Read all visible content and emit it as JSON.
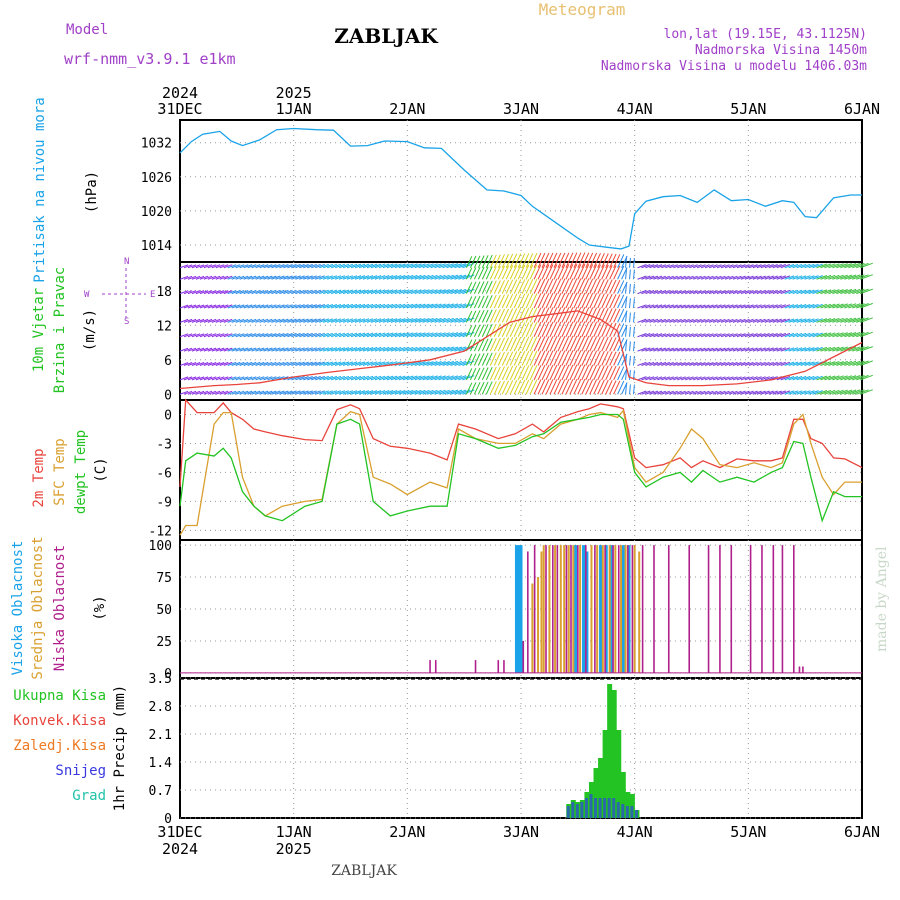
{
  "header": {
    "model_label": "Model",
    "model_name": "wrf-nmm_v3.9.1 e1km",
    "station": "ZABLJAK",
    "product": "Meteogram",
    "lonlat": "lon,lat (19.15E, 43.1125N)",
    "altitude": "Nadmorska Visina 1450m",
    "model_altitude": "Nadmorska Visina u modelu 1406.03m",
    "footer_station": "ZABLJAK",
    "credit": "made by Angel"
  },
  "time_axis": {
    "labels": [
      "31DEC",
      "1JAN",
      "2JAN",
      "3JAN",
      "4JAN",
      "5JAN",
      "6JAN"
    ],
    "year_labels": [
      {
        "at": 0,
        "text": "2024"
      },
      {
        "at": 1,
        "text": "2025"
      }
    ]
  },
  "colors": {
    "pressure": "#1aa3e8",
    "temp2m": "#e8443c",
    "sfc": "#d9a030",
    "dewpt": "#22c322",
    "high": "#1aa3e8",
    "mid": "#d9a030",
    "low": "#b0208c",
    "total": "#22c322",
    "conv": "#e8443c",
    "frz": "#ee7a22",
    "snow": "#3a3ae0",
    "grad": "#22c3a8",
    "purple": "#a040c8"
  },
  "panels": {
    "pressure": {
      "label": "Pritisak na nivou mora",
      "unit": "(hPa)",
      "ticks": [
        1014,
        1020,
        1026,
        1032
      ]
    },
    "wind": {
      "label1": "10m Vjetar",
      "label2": "Brzina i Pravac",
      "unit": "(m/s)",
      "ticks": [
        0,
        6,
        12,
        18
      ],
      "compass_w": "W",
      "compass_e": "E",
      "compass_n": "N",
      "compass_s": "S"
    },
    "temp": {
      "label_2m": "2m Temp",
      "label_sfc": "SFC Temp",
      "label_dew": "dewpt Temp",
      "unit": "(C)",
      "ticks": [
        0,
        -3,
        -6,
        -9,
        -12
      ]
    },
    "clouds": {
      "label_high": "Visoka Oblacnost",
      "label_mid": "Srednja Oblacnost",
      "label_low": "Niska Oblacnost",
      "unit": "(%)",
      "ticks": [
        0,
        25,
        50,
        75,
        100
      ]
    },
    "precip": {
      "label_total": "Ukupna Kisa",
      "label_conv": "Konvek.Kisa",
      "label_frz": "Zaledj.Kisa",
      "label_snow": "Snijeg",
      "label_grad": "Grad",
      "ylabel": "1hr Precip (mm)",
      "ticks": [
        0,
        0.7,
        1.4,
        2.1,
        2.8,
        3.5
      ]
    }
  },
  "chart_data": [
    {
      "type": "line",
      "title": "Pritisak na nivou mora",
      "ylabel": "(hPa)",
      "ylim": [
        1011,
        1036
      ],
      "x_unit": "days since 31DEC 2024 00UTC",
      "series": [
        {
          "name": "Pritisak na nivou mora",
          "x": [
            0,
            0.1,
            0.2,
            0.35,
            0.45,
            0.55,
            0.7,
            0.85,
            1.0,
            1.2,
            1.35,
            1.5,
            1.65,
            1.8,
            2.0,
            2.15,
            2.3,
            2.5,
            2.7,
            2.85,
            3.0,
            3.1,
            3.3,
            3.5,
            3.6,
            3.75,
            3.88,
            3.95,
            4.0,
            4.1,
            4.25,
            4.4,
            4.55,
            4.7,
            4.85,
            5.0,
            5.15,
            5.3,
            5.4,
            5.5,
            5.6,
            5.75,
            5.9,
            6.0
          ],
          "values": [
            1030.2,
            1032.2,
            1033.5,
            1034.0,
            1032.3,
            1031.5,
            1032.5,
            1034.3,
            1034.5,
            1034.3,
            1034.2,
            1031.4,
            1031.5,
            1032.3,
            1032.2,
            1031.1,
            1031.0,
            1027.2,
            1023.7,
            1023.5,
            1022.7,
            1020.8,
            1018.0,
            1015.2,
            1014.0,
            1013.6,
            1013.3,
            1013.8,
            1019.5,
            1021.7,
            1022.5,
            1022.7,
            1021.5,
            1023.7,
            1021.8,
            1022.0,
            1020.8,
            1021.8,
            1021.5,
            1019.0,
            1018.8,
            1022.3,
            1022.8,
            1022.8
          ]
        }
      ]
    },
    {
      "type": "line",
      "title": "10m Vjetar Brzina i Pravac",
      "ylabel": "(m/s)",
      "ylim": [
        -1,
        23
      ],
      "x_unit": "days since 31DEC 2024 00UTC",
      "series": [
        {
          "name": "10m Vjetar",
          "x": [
            0,
            0.3,
            0.5,
            0.7,
            1.0,
            1.3,
            1.6,
            1.9,
            2.2,
            2.5,
            2.7,
            2.9,
            3.1,
            3.3,
            3.5,
            3.7,
            3.85,
            3.95,
            4.1,
            4.3,
            4.6,
            4.9,
            5.2,
            5.5,
            5.8,
            6.0
          ],
          "values": [
            1.0,
            1.5,
            1.7,
            2.0,
            3.0,
            3.8,
            4.5,
            5.2,
            6.0,
            7.5,
            10.0,
            12.5,
            13.5,
            14.0,
            14.5,
            13.0,
            11.0,
            3.0,
            2.0,
            1.5,
            1.5,
            1.8,
            2.5,
            4.0,
            7.0,
            9.0
          ]
        }
      ]
    },
    {
      "type": "line",
      "title": "2m Temp / SFC Temp / dewpt Temp",
      "ylabel": "(C)",
      "ylim": [
        -13,
        1.5
      ],
      "x_unit": "days since 31DEC 2024 00UTC",
      "series": [
        {
          "name": "2m Temp",
          "x": [
            0,
            0.05,
            0.15,
            0.3,
            0.38,
            0.45,
            0.55,
            0.65,
            0.75,
            0.9,
            1.1,
            1.25,
            1.38,
            1.5,
            1.58,
            1.7,
            1.85,
            2.0,
            2.2,
            2.35,
            2.45,
            2.6,
            2.8,
            2.95,
            3.1,
            3.2,
            3.35,
            3.5,
            3.6,
            3.7,
            3.85,
            3.9,
            4.0,
            4.1,
            4.25,
            4.4,
            4.5,
            4.6,
            4.75,
            4.9,
            5.05,
            5.2,
            5.3,
            5.4,
            5.48,
            5.55,
            5.65,
            5.75,
            5.85,
            6.0
          ],
          "values": [
            -7.5,
            1.5,
            0.2,
            0.2,
            1.2,
            0.2,
            -0.5,
            -1.5,
            -1.8,
            -2.2,
            -2.6,
            -2.7,
            0.5,
            1.0,
            0.6,
            -2.5,
            -3.3,
            -3.5,
            -4.0,
            -4.7,
            -1.0,
            -1.5,
            -2.5,
            -2.0,
            -1.0,
            -1.8,
            -0.3,
            0.3,
            0.6,
            1.1,
            0.8,
            0.6,
            -4.5,
            -5.5,
            -5.2,
            -4.5,
            -5.5,
            -4.8,
            -5.5,
            -4.6,
            -4.8,
            -4.8,
            -4.5,
            -0.5,
            -0.5,
            -2.5,
            -3.0,
            -4.5,
            -4.6,
            -5.5
          ]
        },
        {
          "name": "SFC Temp",
          "x": [
            0,
            0.05,
            0.15,
            0.3,
            0.38,
            0.45,
            0.55,
            0.65,
            0.75,
            0.9,
            1.1,
            1.25,
            1.38,
            1.5,
            1.58,
            1.7,
            1.85,
            2.0,
            2.2,
            2.35,
            2.45,
            2.6,
            2.8,
            2.95,
            3.1,
            3.2,
            3.35,
            3.5,
            3.6,
            3.7,
            3.85,
            3.9,
            4.0,
            4.1,
            4.25,
            4.4,
            4.5,
            4.6,
            4.75,
            4.9,
            5.05,
            5.2,
            5.3,
            5.4,
            5.48,
            5.55,
            5.65,
            5.75,
            5.85,
            6.0
          ],
          "values": [
            -12.5,
            -11.5,
            -11.5,
            -1.0,
            0.2,
            0.2,
            -6.5,
            -9.5,
            -10.5,
            -9.5,
            -9.0,
            -8.8,
            -1.0,
            0.3,
            0.0,
            -6.5,
            -7.2,
            -8.3,
            -7.0,
            -7.6,
            -1.5,
            -2.5,
            -3.0,
            -3.0,
            -2.0,
            -2.5,
            -1.0,
            -0.5,
            0.0,
            0.2,
            -0.3,
            0.4,
            -5.5,
            -7.0,
            -6.0,
            -3.5,
            -1.5,
            -2.5,
            -5.2,
            -5.5,
            -5.0,
            -5.5,
            -5.0,
            -1.0,
            0.0,
            -3.0,
            -6.5,
            -8.3,
            -7.0,
            -7.0
          ]
        },
        {
          "name": "dewpt Temp",
          "x": [
            0,
            0.05,
            0.15,
            0.3,
            0.38,
            0.45,
            0.55,
            0.65,
            0.75,
            0.9,
            1.1,
            1.25,
            1.38,
            1.5,
            1.58,
            1.7,
            1.85,
            2.0,
            2.2,
            2.35,
            2.45,
            2.6,
            2.8,
            2.95,
            3.1,
            3.2,
            3.35,
            3.5,
            3.6,
            3.7,
            3.85,
            3.9,
            4.0,
            4.1,
            4.25,
            4.4,
            4.5,
            4.6,
            4.75,
            4.9,
            5.05,
            5.2,
            5.3,
            5.4,
            5.48,
            5.55,
            5.65,
            5.75,
            5.85,
            6.0
          ],
          "values": [
            -9.5,
            -4.8,
            -4.0,
            -4.3,
            -3.5,
            -4.5,
            -8.0,
            -9.5,
            -10.5,
            -11.0,
            -9.5,
            -9.0,
            -1.0,
            -0.5,
            -1.0,
            -9.0,
            -10.5,
            -10.0,
            -9.5,
            -9.5,
            -2.0,
            -2.5,
            -3.5,
            -3.2,
            -2.3,
            -2.0,
            -0.8,
            -0.5,
            -0.3,
            0.0,
            0.0,
            -0.5,
            -6.0,
            -7.5,
            -6.5,
            -6.0,
            -7.0,
            -5.8,
            -7.0,
            -6.5,
            -7.0,
            -6.0,
            -5.5,
            -2.8,
            -3.0,
            -6.5,
            -11.0,
            -8.0,
            -8.5,
            -8.5
          ]
        }
      ]
    },
    {
      "type": "bar",
      "title": "Visoka / Srednja / Niska Oblacnost",
      "ylabel": "(%)",
      "ylim": [
        0,
        100
      ],
      "x_unit": "days since 31DEC 2024 00UTC",
      "series": [
        {
          "name": "Visoka Oblacnost",
          "x": [
            2.96,
            2.98,
            3.0,
            3.48,
            3.55,
            3.58,
            3.7,
            3.75,
            3.8,
            3.9,
            3.95
          ],
          "values": [
            100,
            100,
            100,
            100,
            100,
            95,
            100,
            100,
            100,
            100,
            100
          ]
        },
        {
          "name": "Srednja Oblacnost",
          "x": [
            3.1,
            3.15,
            3.18,
            3.2,
            3.25,
            3.3,
            3.35,
            3.38,
            3.42,
            3.46,
            3.52,
            3.62,
            3.67,
            3.72,
            3.78,
            3.83,
            3.88,
            3.92,
            4.0,
            4.04
          ],
          "values": [
            70,
            75,
            95,
            100,
            100,
            100,
            100,
            100,
            100,
            100,
            100,
            100,
            100,
            100,
            100,
            100,
            100,
            100,
            100,
            95
          ]
        },
        {
          "name": "Niska Oblacnost",
          "x": [
            2.2,
            2.25,
            2.6,
            2.8,
            2.85,
            3.02,
            3.06,
            3.12,
            3.22,
            3.28,
            3.32,
            3.4,
            3.44,
            3.5,
            3.57,
            3.65,
            3.74,
            3.81,
            3.86,
            3.94,
            3.98,
            4.07,
            4.17,
            4.3,
            4.48,
            4.65,
            4.75,
            4.85,
            5.02,
            5.12,
            5.22,
            5.3,
            5.4,
            5.45,
            5.48
          ],
          "values": [
            10,
            10,
            10,
            10,
            10,
            25,
            95,
            100,
            100,
            100,
            100,
            100,
            100,
            100,
            100,
            100,
            100,
            100,
            100,
            100,
            100,
            100,
            100,
            100,
            100,
            100,
            100,
            100,
            100,
            100,
            100,
            100,
            100,
            5,
            5
          ]
        }
      ]
    },
    {
      "type": "bar",
      "title": "1hr Precip",
      "ylabel": "1hr Precip (mm)",
      "ylim": [
        0,
        3.5
      ],
      "x_unit": "days since 31DEC 2024 00UTC",
      "series": [
        {
          "name": "Ukupna Kisa",
          "x": [
            3.42,
            3.46,
            3.5,
            3.54,
            3.58,
            3.62,
            3.66,
            3.7,
            3.74,
            3.78,
            3.82,
            3.86,
            3.9,
            3.94,
            3.98,
            4.02
          ],
          "values": [
            0.35,
            0.45,
            0.4,
            0.45,
            0.65,
            0.9,
            1.25,
            1.5,
            2.2,
            3.35,
            3.2,
            2.2,
            1.15,
            0.65,
            0.6,
            0.2
          ]
        },
        {
          "name": "Snijeg",
          "x": [
            3.42,
            3.46,
            3.5,
            3.54,
            3.58,
            3.62,
            3.66,
            3.7,
            3.74,
            3.78,
            3.82,
            3.86,
            3.9,
            3.94,
            3.98,
            4.02
          ],
          "values": [
            0.3,
            0.4,
            0.35,
            0.4,
            0.5,
            0.6,
            0.5,
            0.5,
            0.5,
            0.5,
            0.5,
            0.4,
            0.35,
            0.3,
            0.3,
            0.2
          ]
        }
      ]
    }
  ]
}
